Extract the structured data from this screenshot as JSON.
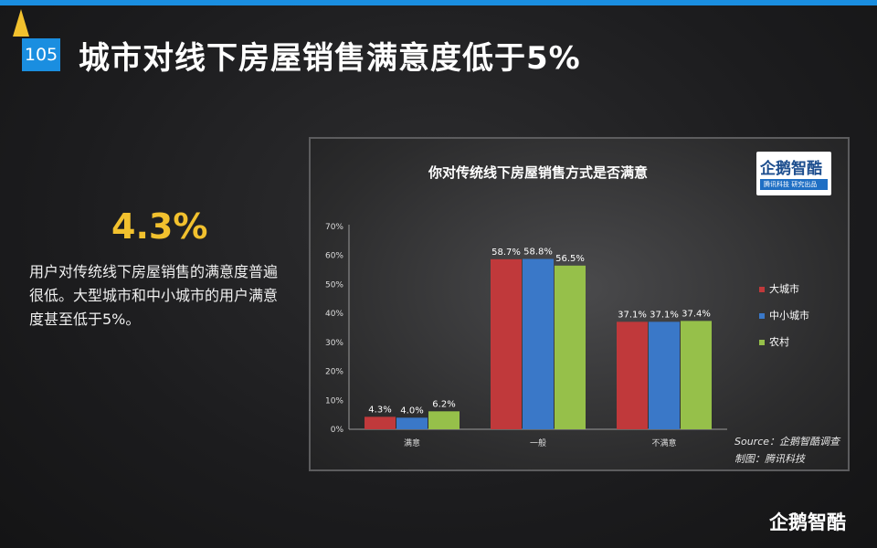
{
  "slide": {
    "page_number": "105",
    "title": "城市对线下房屋销售满意度低于5%",
    "highlight_value": "4.3%",
    "description": "用户对传统线下房屋销售的满意度普遍很低。大型城市和中小城市的用户满意度甚至低于5%。",
    "logo_text": "企鹅智酷",
    "chart_logo_text": "企鹅智酷",
    "chart_logo_sub": "腾讯科技 研究出品",
    "source_line": "Source：企鹅智酷调查",
    "maker_line": "制图：腾讯科技"
  },
  "colors": {
    "accent_blue": "#1a8ee0",
    "highlight_yellow": "#f2c12e"
  },
  "chart_data": {
    "type": "bar",
    "title": "你对传统线下房屋销售方式是否满意",
    "categories": [
      "满意",
      "一般",
      "不满意"
    ],
    "series": [
      {
        "name": "大城市",
        "color": "#c0393b",
        "values": [
          4.3,
          58.7,
          37.1
        ],
        "labels": [
          "4.3%",
          "58.7%",
          "37.1%"
        ]
      },
      {
        "name": "中小城市",
        "color": "#3a78c8",
        "values": [
          4.0,
          58.8,
          37.1
        ],
        "labels": [
          "4.0%",
          "58.8%",
          "37.1%"
        ]
      },
      {
        "name": "农村",
        "color": "#96c04a",
        "values": [
          6.2,
          56.5,
          37.4
        ],
        "labels": [
          "6.2%",
          "56.5%",
          "37.4%"
        ]
      }
    ],
    "yticks": [
      "0%",
      "10%",
      "20%",
      "30%",
      "40%",
      "50%",
      "60%",
      "70%"
    ],
    "ylim": [
      0,
      70
    ],
    "xlabel": "",
    "ylabel": "",
    "legend_position": "right",
    "grid": false
  }
}
